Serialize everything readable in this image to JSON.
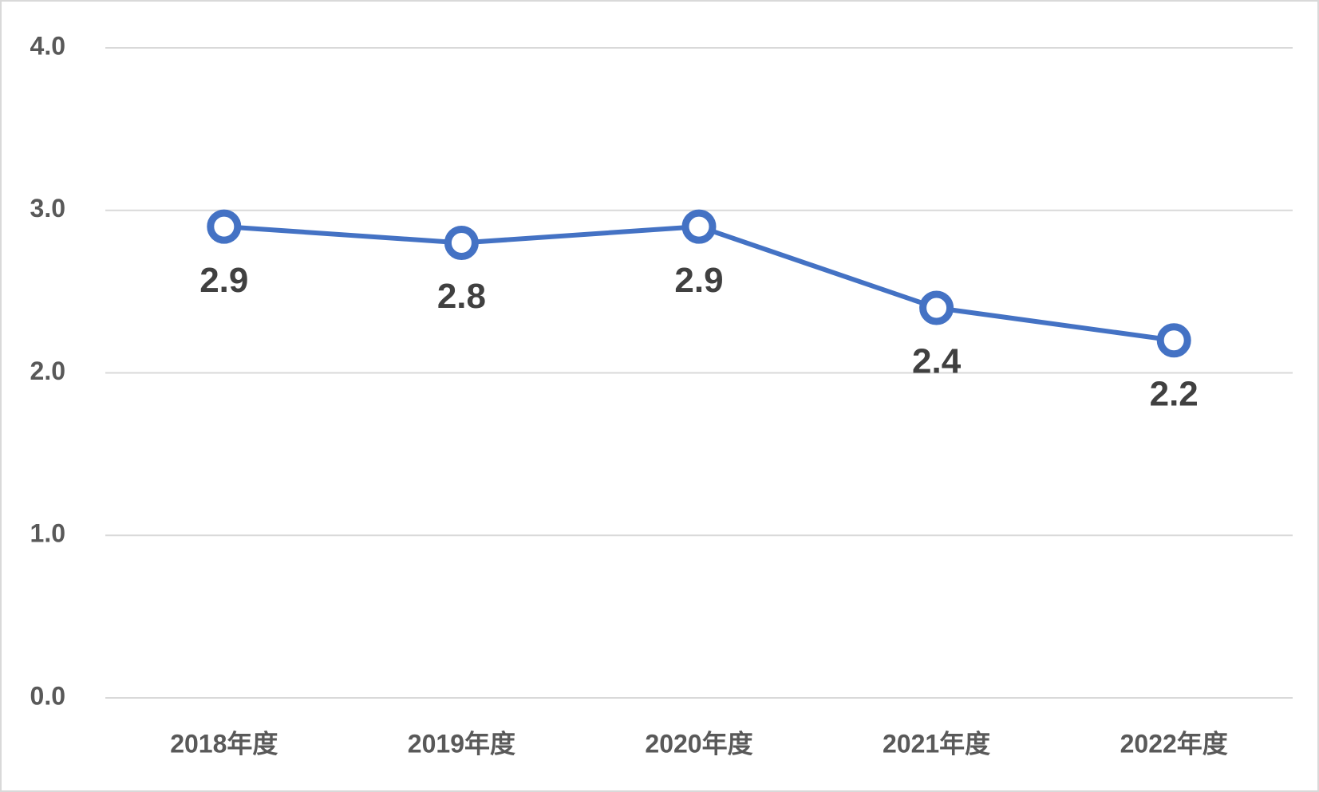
{
  "chart_data": {
    "type": "line",
    "categories": [
      "2018年度",
      "2019年度",
      "2020年度",
      "2021年度",
      "2022年度"
    ],
    "series": [
      {
        "color": "#4472c4",
        "values": [
          2.9,
          2.8,
          2.9,
          2.4,
          2.2
        ]
      }
    ],
    "ylim": [
      0,
      4
    ],
    "yticks": [
      {
        "value": 0,
        "label": "0.0"
      },
      {
        "value": 1,
        "label": "1.0"
      },
      {
        "value": 2,
        "label": "2.0"
      },
      {
        "value": 3,
        "label": "3.0"
      },
      {
        "value": 4,
        "label": "4.0"
      }
    ],
    "grid": true
  }
}
